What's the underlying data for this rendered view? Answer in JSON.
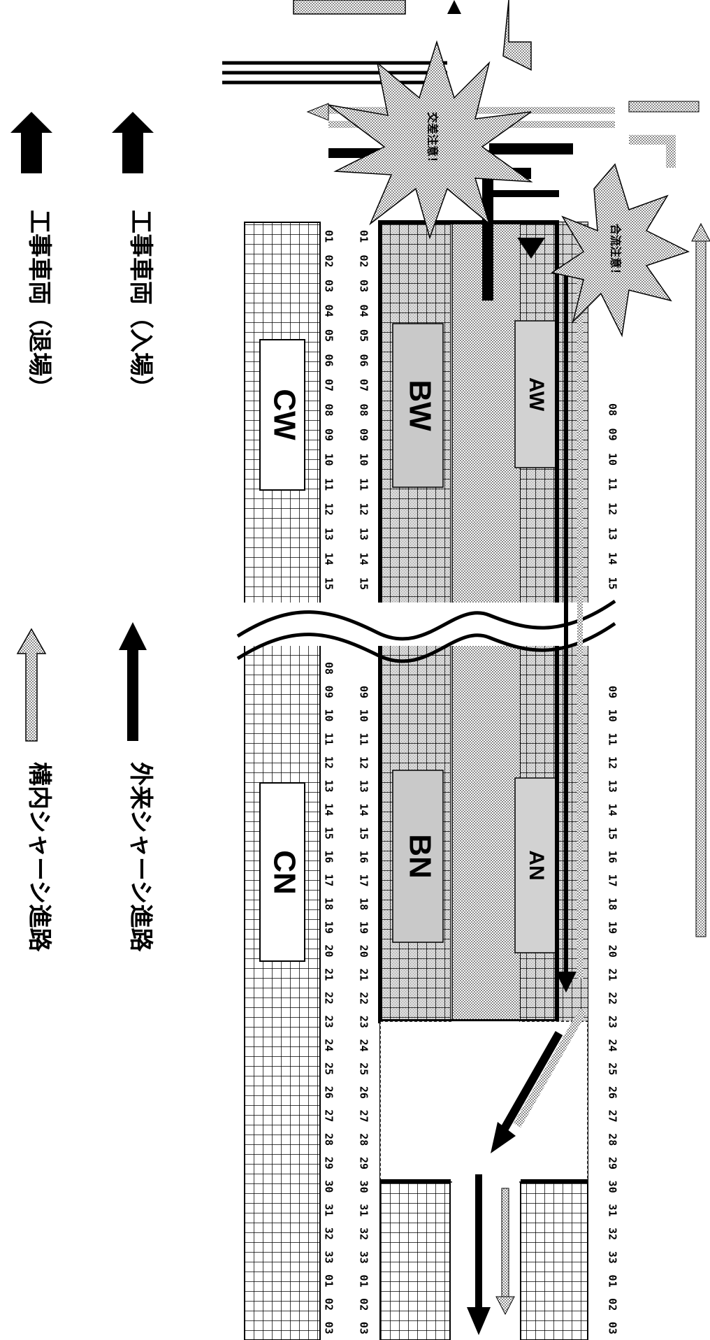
{
  "legend": [
    {
      "label": "工事車両（入場）",
      "icon": "filled-arrow-icon"
    },
    {
      "label": "工事車両（退場）",
      "icon": "filled-arrow-icon"
    },
    {
      "label": "外来シャーシ進路",
      "icon": "thick-line-arrow-icon"
    },
    {
      "label": "構内シャーシ進路",
      "icon": "dotted-arrow-icon"
    }
  ],
  "zones": {
    "aw": "AW",
    "an": "AN",
    "bw": "BW",
    "bn": "BN",
    "cw": "CW",
    "cn": "CN"
  },
  "warnings": {
    "crossing": "交差注意！",
    "merge": "合流注意！"
  },
  "row_numbers": {
    "top_west": [
      "08",
      "09",
      "10",
      "11",
      "12",
      "13",
      "14",
      "15"
    ],
    "top_east": [
      "09",
      "10",
      "11",
      "12",
      "13",
      "14",
      "15",
      "16",
      "17",
      "18",
      "19",
      "20",
      "21",
      "22",
      "23",
      "24",
      "25",
      "26",
      "27",
      "28",
      "29",
      "30",
      "31",
      "32",
      "33",
      "01",
      "02",
      "03"
    ],
    "b_west": [
      "01",
      "02",
      "03",
      "04",
      "05",
      "06",
      "07",
      "08",
      "09",
      "10",
      "11",
      "12",
      "13",
      "14",
      "15"
    ],
    "b_east": [
      "09",
      "10",
      "11",
      "12",
      "13",
      "14",
      "15",
      "16",
      "17",
      "18",
      "19",
      "20",
      "21",
      "22",
      "23",
      "24",
      "25",
      "26",
      "27",
      "28",
      "29",
      "30",
      "31",
      "32",
      "33",
      "01",
      "02",
      "03"
    ],
    "c_west": [
      "01",
      "02",
      "03",
      "04",
      "05",
      "06",
      "07",
      "08",
      "09",
      "10",
      "11",
      "12",
      "13",
      "14",
      "15"
    ],
    "c_east": [
      "08",
      "09",
      "10",
      "11",
      "12",
      "13",
      "14",
      "15",
      "16",
      "17",
      "18",
      "19",
      "20",
      "21",
      "22",
      "23",
      "24",
      "25",
      "26",
      "27",
      "28",
      "29",
      "30",
      "31",
      "32",
      "33",
      "01",
      "02",
      "03"
    ]
  },
  "colors": {
    "ink": "#000000",
    "screen": "#b8b8b8",
    "paper": "#ffffff"
  }
}
